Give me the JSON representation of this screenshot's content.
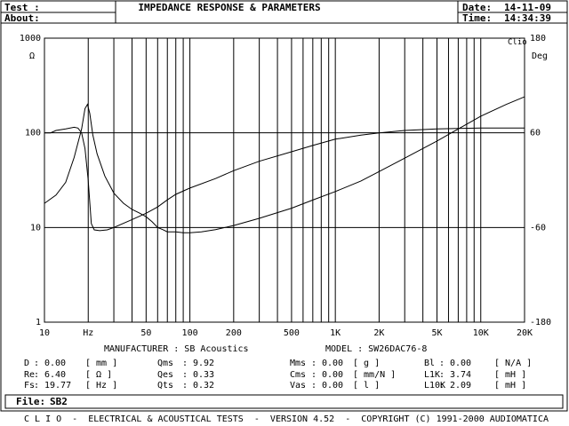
{
  "header": {
    "test_label": "Test :",
    "about_label": "About:",
    "title": "IMPEDANCE RESPONSE & PARAMETERS",
    "date_label": "Date:",
    "date_value": "14-11-09",
    "time_label": "Time:",
    "time_value": "14:34:39"
  },
  "chart": {
    "brand": "Clio",
    "left_unit": "Ω",
    "right_unit": "Deg",
    "x_unit": "Hz"
  },
  "chart_data": {
    "type": "line",
    "xscale": "log",
    "xlim": [
      10,
      20000
    ],
    "ylim_left": [
      1,
      1000
    ],
    "yscale_left": "log",
    "ylim_right": [
      -180,
      180
    ],
    "grid": true,
    "x_ticks": [
      {
        "v": 10,
        "label": "10"
      },
      {
        "v": 20,
        "label": "Hz"
      },
      {
        "v": 50,
        "label": "50"
      },
      {
        "v": 100,
        "label": "100"
      },
      {
        "v": 200,
        "label": "200"
      },
      {
        "v": 500,
        "label": "500"
      },
      {
        "v": 1000,
        "label": "1K"
      },
      {
        "v": 2000,
        "label": "2K"
      },
      {
        "v": 5000,
        "label": "5K"
      },
      {
        "v": 10000,
        "label": "10K"
      },
      {
        "v": 20000,
        "label": "20K"
      }
    ],
    "y_left_ticks": [
      {
        "v": 1000,
        "label": "1000"
      },
      {
        "v": 100,
        "label": "100"
      },
      {
        "v": 10,
        "label": "10"
      },
      {
        "v": 1,
        "label": "1"
      }
    ],
    "y_right_ticks": [
      {
        "v": 180,
        "label": "180"
      },
      {
        "v": 60,
        "label": "60"
      },
      {
        "v": -60,
        "label": "-60"
      },
      {
        "v": -180,
        "label": "-180"
      }
    ],
    "series": [
      {
        "axis": "left",
        "x": [
          10,
          12,
          14,
          16,
          18,
          19,
          19.77,
          20.5,
          21.5,
          23,
          26,
          30,
          35,
          40,
          45,
          50,
          55,
          60,
          65,
          70,
          80,
          90,
          100,
          120,
          150,
          200,
          300,
          500,
          700,
          1000,
          1500,
          2000,
          3000,
          5000,
          7000,
          10000,
          15000,
          20000
        ],
        "y": [
          18,
          22,
          30,
          55,
          110,
          180,
          200,
          160,
          95,
          60,
          35,
          23,
          18,
          15.5,
          14.2,
          13,
          11.5,
          10,
          9.5,
          9,
          9,
          8.8,
          8.8,
          9,
          9.5,
          10.5,
          12.5,
          16,
          19.5,
          24,
          31,
          39,
          54,
          82,
          110,
          150,
          200,
          240
        ]
      },
      {
        "axis": "right",
        "x": [
          10,
          11,
          12,
          14,
          16,
          17,
          18,
          19,
          20,
          21,
          22,
          24,
          27,
          30,
          40,
          50,
          60,
          70,
          80,
          100,
          150,
          200,
          300,
          500,
          700,
          1000,
          1500,
          2000,
          3000,
          5000,
          10000,
          20000
        ],
        "y": [
          60,
          60,
          63,
          65,
          67,
          66,
          60,
          40,
          0,
          -55,
          -63,
          -64,
          -63,
          -60,
          -50,
          -42,
          -34,
          -25,
          -18,
          -10,
          2,
          12,
          24,
          36,
          44,
          52,
          57,
          60,
          63,
          65,
          66,
          66
        ]
      }
    ]
  },
  "params": {
    "manufacturer_label": "MANUFACTURER : SB Acoustics",
    "model_label": "MODEL : SW26DAC76-8",
    "col1": [
      {
        "name": "D",
        "value": "0.00",
        "unit": "[ mm ]"
      },
      {
        "name": "Re",
        "value": "6.40",
        "unit": "[ Ω ]"
      },
      {
        "name": "Fs",
        "value": "19.77",
        "unit": "[ Hz ]"
      }
    ],
    "col2": [
      {
        "name": "Qms",
        "value": "9.92"
      },
      {
        "name": "Qes",
        "value": "0.33"
      },
      {
        "name": "Qts",
        "value": "0.32"
      }
    ],
    "col3": [
      {
        "name": "Mms",
        "value": "0.00",
        "unit": "[ g ]"
      },
      {
        "name": "Cms",
        "value": "0.00",
        "unit": "[ mm/N ]"
      },
      {
        "name": "Vas",
        "value": "0.00",
        "unit": "[ l ]"
      }
    ],
    "col4": [
      {
        "name": "Bl",
        "value": "0.00",
        "unit": "[ N/A ]"
      },
      {
        "name": "L1K",
        "value": "3.74",
        "unit": "[ mH ]"
      },
      {
        "name": "L10K",
        "value": "2.09",
        "unit": "[ mH ]"
      }
    ]
  },
  "file": {
    "label": "File:",
    "value": "SB2"
  },
  "footer": "C L I O  -  ELECTRICAL & ACOUSTICAL TESTS  -  VERSION 4.52  -  COPYRIGHT (C) 1991-2000 AUDIOMATICA"
}
